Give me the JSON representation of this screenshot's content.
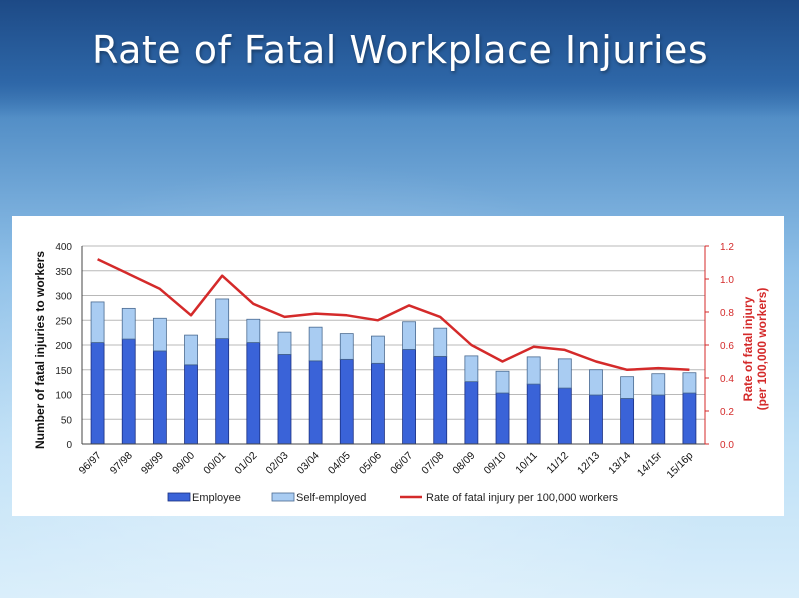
{
  "slide": {
    "title": "Rate of Fatal Workplace Injuries"
  },
  "colors": {
    "employee": "#3a63d8",
    "self_employed": "#a9ccf2",
    "rate_line": "#d42a2a",
    "right_axis": "#d42a2a"
  },
  "chart_data": {
    "type": "bar",
    "categories": [
      "96/97",
      "97/98",
      "98/99",
      "99/00",
      "00/01",
      "01/02",
      "02/03",
      "03/04",
      "04/05",
      "05/06",
      "06/07",
      "07/08",
      "08/09",
      "09/10",
      "10/11",
      "11/12",
      "12/13",
      "13/14",
      "14/15r",
      "15/16p"
    ],
    "series": [
      {
        "name": "Employee",
        "kind": "stacked-bar",
        "axis": "left",
        "values": [
          205,
          212,
          188,
          160,
          213,
          205,
          181,
          168,
          171,
          163,
          191,
          177,
          126,
          103,
          121,
          113,
          99,
          92,
          99,
          103
        ]
      },
      {
        "name": "Self-employed",
        "kind": "stacked-bar",
        "axis": "left",
        "values": [
          82,
          62,
          66,
          60,
          80,
          47,
          45,
          68,
          52,
          55,
          56,
          57,
          52,
          44,
          55,
          59,
          51,
          44,
          43,
          41
        ]
      },
      {
        "name": "Rate of fatal injury per 100,000 workers",
        "kind": "line",
        "axis": "right",
        "values": [
          1.12,
          1.03,
          0.94,
          0.78,
          1.02,
          0.85,
          0.77,
          0.79,
          0.78,
          0.75,
          0.84,
          0.77,
          0.6,
          0.5,
          0.59,
          0.57,
          0.5,
          0.45,
          0.46,
          0.45
        ]
      }
    ],
    "ylabel": "Number of fatal injuries to workers",
    "ylabel_right_line1": "Rate of fatal injury",
    "ylabel_right_line2": "(per 100,000 workers)",
    "ylim": [
      0,
      400
    ],
    "yticks": [
      "0",
      "50",
      "100",
      "150",
      "200",
      "250",
      "300",
      "350",
      "400"
    ],
    "ylim_right": [
      0,
      1.2
    ],
    "yticks_right": [
      "0.0",
      "0.2",
      "0.4",
      "0.6",
      "0.8",
      "1.0",
      "1.2"
    ],
    "legend": [
      "Employee",
      "Self-employed",
      "Rate of fatal injury per 100,000 workers"
    ],
    "legend_position": "bottom",
    "grid": true
  }
}
